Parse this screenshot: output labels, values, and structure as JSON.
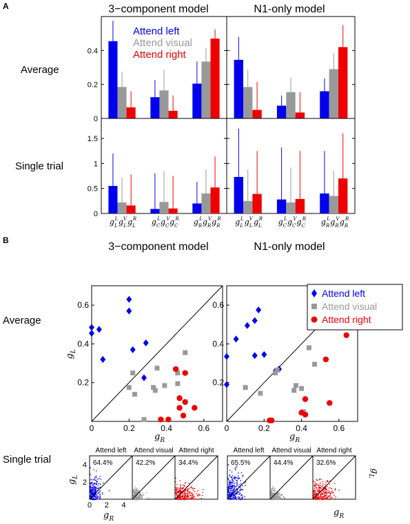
{
  "colors": {
    "left": "#0000ee",
    "visual": "#999999",
    "right": "#ee0000",
    "axis": "#000000"
  },
  "panel_a": {
    "letter": "A",
    "col_titles": [
      "3−component model",
      "N1-only model"
    ],
    "row_labels": [
      "Average",
      "Single trial"
    ],
    "legend": [
      "Attend left",
      "Attend visual",
      "Attend right"
    ],
    "xtick_groups": {
      "model3": [
        "L",
        "C",
        "R"
      ],
      "n1": [
        "L",
        "C",
        "R"
      ]
    },
    "xtick_super": [
      "L",
      "V",
      "R"
    ]
  },
  "panel_b": {
    "letter": "B",
    "col_titles": [
      "3−component model",
      "N1-only model"
    ],
    "row_labels": [
      "Average",
      "Single trial"
    ],
    "legend": [
      "Attend left",
      "Attend visual",
      "Attend right"
    ],
    "ylabel": "g",
    "ylabel_sub": "L",
    "xlabel": "g",
    "xlabel_sub": "R",
    "single_trial_titles": [
      "Attend left",
      "Attend visual",
      "Attend right"
    ],
    "single_trial_pct": {
      "model3": [
        "64.4%",
        "42.2%",
        "34.4%"
      ],
      "n1": [
        "65.5%",
        "44.4%",
        "32.6%"
      ]
    },
    "single_trial_ticks": [
      "0",
      "2",
      "4"
    ]
  },
  "chart_data": [
    {
      "type": "bar",
      "panel": "A",
      "row": "Average",
      "model": "3-component model",
      "categories": [
        "gL",
        "gC",
        "gR"
      ],
      "series": [
        {
          "name": "Attend left",
          "values": [
            0.455,
            0.125,
            0.205
          ],
          "err_upper": [
            0.575,
            0.225,
            0.335
          ]
        },
        {
          "name": "Attend visual",
          "values": [
            0.185,
            0.165,
            0.335
          ],
          "err_upper": [
            0.275,
            0.285,
            0.415
          ]
        },
        {
          "name": "Attend right",
          "values": [
            0.065,
            0.045,
            0.47
          ],
          "err_upper": [
            0.16,
            0.135,
            0.525
          ]
        }
      ],
      "ylim": [
        0,
        0.6
      ],
      "yticks": [
        0,
        0.2,
        0.4
      ]
    },
    {
      "type": "bar",
      "panel": "A",
      "row": "Average",
      "model": "N1-only model",
      "categories": [
        "gL",
        "gC",
        "gR"
      ],
      "series": [
        {
          "name": "Attend left",
          "values": [
            0.345,
            0.075,
            0.16
          ],
          "err_upper": [
            0.48,
            0.135,
            0.235
          ]
        },
        {
          "name": "Attend visual",
          "values": [
            0.185,
            0.155,
            0.29
          ],
          "err_upper": [
            0.285,
            0.24,
            0.385
          ]
        },
        {
          "name": "Attend right",
          "values": [
            0.05,
            0.035,
            0.42
          ],
          "err_upper": [
            0.215,
            0.155,
            0.55
          ]
        }
      ],
      "ylim": [
        0,
        0.6
      ],
      "yticks": [
        0,
        0.2,
        0.4
      ]
    },
    {
      "type": "bar",
      "panel": "A",
      "row": "Single trial",
      "model": "3-component model",
      "categories": [
        "gL",
        "gC",
        "gR"
      ],
      "series": [
        {
          "name": "Attend left",
          "values": [
            0.55,
            0.09,
            0.2
          ],
          "err_upper": [
            1.2,
            0.8,
            0.63
          ]
        },
        {
          "name": "Attend visual",
          "values": [
            0.22,
            0.23,
            0.4
          ],
          "err_upper": [
            0.72,
            0.85,
            0.88
          ]
        },
        {
          "name": "Attend right",
          "values": [
            0.16,
            0.1,
            0.52
          ],
          "err_upper": [
            0.78,
            0.75,
            1.14
          ]
        }
      ],
      "ylim": [
        0,
        1.9
      ],
      "yticks": [
        0,
        0.5,
        1,
        1.5
      ]
    },
    {
      "type": "bar",
      "panel": "A",
      "row": "Single trial",
      "model": "N1-only model",
      "categories": [
        "gL",
        "gC",
        "gR"
      ],
      "series": [
        {
          "name": "Attend left",
          "values": [
            0.73,
            0.28,
            0.4
          ],
          "err_upper": [
            1.7,
            1.32,
            1.25
          ]
        },
        {
          "name": "Attend visual",
          "values": [
            0.25,
            0.22,
            0.35
          ],
          "err_upper": [
            0.88,
            0.92,
            0.86
          ]
        },
        {
          "name": "Attend right",
          "values": [
            0.39,
            0.29,
            0.7
          ],
          "err_upper": [
            1.25,
            1.25,
            1.6
          ]
        }
      ],
      "ylim": [
        0,
        1.9
      ],
      "yticks": [
        0,
        0.5,
        1,
        1.5
      ]
    },
    {
      "type": "scatter",
      "panel": "B",
      "row": "Average",
      "model": "3-component model",
      "xlim": [
        0,
        0.7
      ],
      "ylim": [
        0,
        0.7
      ],
      "xticks": [
        0,
        0.2,
        0.4,
        0.6
      ],
      "yticks": [
        0.2,
        0.4,
        0.6
      ],
      "series": [
        {
          "name": "Attend left",
          "points": [
            [
              0.0,
              0.485
            ],
            [
              0.0,
              0.455
            ],
            [
              0.04,
              0.475
            ],
            [
              0.06,
              0.32
            ],
            [
              0.2,
              0.63
            ],
            [
              0.2,
              0.57
            ],
            [
              0.22,
              0.37
            ],
            [
              0.29,
              0.405
            ],
            [
              0.28,
              0.225
            ]
          ]
        },
        {
          "name": "Attend visual",
          "points": [
            [
              0.22,
              0.25
            ],
            [
              0.2,
              0.175
            ],
            [
              0.23,
              0.14
            ],
            [
              0.28,
              0.01
            ],
            [
              0.35,
              0.275
            ],
            [
              0.33,
              0.175
            ],
            [
              0.34,
              0.16
            ],
            [
              0.39,
              0.185
            ],
            [
              0.46,
              0.25
            ],
            [
              0.46,
              0.195
            ],
            [
              0.5,
              0.355
            ]
          ]
        },
        {
          "name": "Attend right",
          "points": [
            [
              0.45,
              0.27
            ],
            [
              0.5,
              0.25
            ],
            [
              0.47,
              0.12
            ],
            [
              0.5,
              0.1
            ],
            [
              0.47,
              0.07
            ],
            [
              0.55,
              0.07
            ],
            [
              0.49,
              0.03
            ],
            [
              0.37,
              0.01
            ],
            [
              0.41,
              0.01
            ]
          ]
        }
      ]
    },
    {
      "type": "scatter",
      "panel": "B",
      "row": "Average",
      "model": "N1-only model",
      "xlim": [
        0,
        0.7
      ],
      "ylim": [
        0,
        0.7
      ],
      "xticks": [
        0,
        0.2,
        0.4,
        0.6
      ],
      "yticks": [
        0.2,
        0.4,
        0.6
      ],
      "series": [
        {
          "name": "Attend left",
          "points": [
            [
              0.0,
              0.335
            ],
            [
              0.0,
              0.19
            ],
            [
              0.05,
              0.425
            ],
            [
              0.11,
              0.495
            ],
            [
              0.15,
              0.52
            ],
            [
              0.17,
              0.575
            ],
            [
              0.15,
              0.34
            ],
            [
              0.2,
              0.345
            ],
            [
              0.26,
              0.26
            ],
            [
              0.28,
              0.27
            ]
          ]
        },
        {
          "name": "Attend visual",
          "points": [
            [
              0.1,
              0.175
            ],
            [
              0.18,
              0.145
            ],
            [
              0.26,
              0.25
            ],
            [
              0.27,
              0.265
            ],
            [
              0.37,
              0.185
            ],
            [
              0.36,
              0.16
            ],
            [
              0.4,
              0.17
            ],
            [
              0.44,
              0.38
            ],
            [
              0.47,
              0.295
            ],
            [
              0.41,
              0.05
            ]
          ]
        },
        {
          "name": "Attend right",
          "points": [
            [
              0.23,
              0.005
            ],
            [
              0.24,
              0.005
            ],
            [
              0.42,
              0.115
            ],
            [
              0.4,
              0.045
            ],
            [
              0.42,
              0.035
            ],
            [
              0.53,
              0.32
            ],
            [
              0.55,
              0.095
            ],
            [
              0.64,
              0.445
            ]
          ]
        }
      ]
    }
  ]
}
